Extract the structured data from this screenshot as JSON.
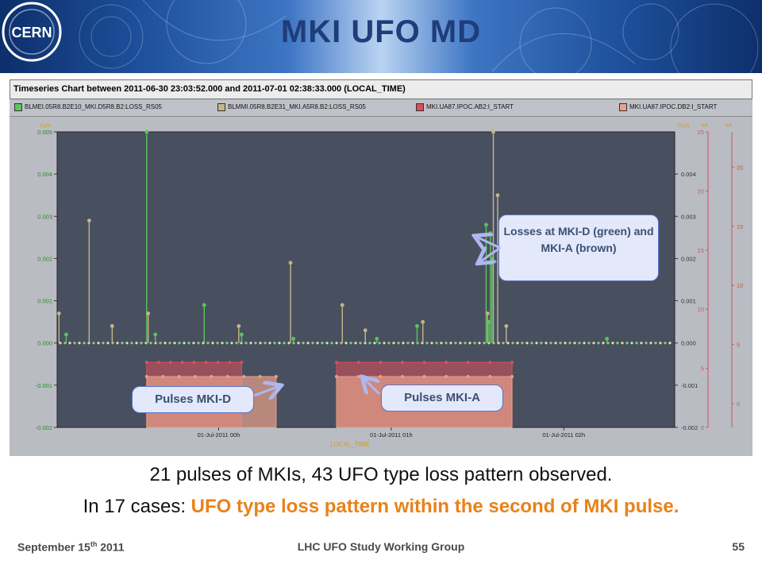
{
  "slide": {
    "title": "MKI UFO MD",
    "caption_line1": "21 pulses of MKIs, 43 UFO type loss pattern observed.",
    "caption_line2_prefix": "In 17 cases: ",
    "caption_line2_highlight": "UFO type loss pattern within the second of MKI pulse.",
    "footer_date_main": "September 15",
    "footer_date_sup": "th",
    "footer_date_year": " 2011",
    "footer_center": "LHC UFO Study Working Group",
    "page_number": "55",
    "highlight_color": "#e8821a",
    "title_color": "#1f3d7a"
  },
  "logo": {
    "text": "CERN"
  },
  "chart_header": {
    "title": "Timeseries Chart between 2011-06-30 23:03:52.000 and 2011-07-01 02:38:33.000 (LOCAL_TIME)"
  },
  "legend": [
    {
      "label": "BLMEI.05R8.B2E10_MKI.D5R8.B2:LOSS_RS05",
      "color": "#5cc55c"
    },
    {
      "label": "BLMMI.05R8.B2E31_MKI.A5R8.B2:LOSS_RS05",
      "color": "#c8b48a"
    },
    {
      "label": "MKI.UA87.IPOC.AB2:I_START",
      "color": "#d9505a"
    },
    {
      "label": "MKI.UA87.IPOC.DB2:I_START",
      "color": "#e8a08a"
    }
  ],
  "callouts": {
    "losses": "Losses at MKI-D (green) and MKI-A (brown)",
    "pulses_d": "Pulses MKI-D",
    "pulses_a": "Pulses MKI-A"
  },
  "chart_data": {
    "type": "line",
    "title": "Timeseries Chart between 2011-06-30 23:03:52.000 and 2011-07-01 02:38:33.000 (LOCAL_TIME)",
    "xlabel": "LOCAL_TIME",
    "x_tick_labels": [
      "01-Jul-2011 00h",
      "01-Jul-2011 01h",
      "01-Jul-2011 02h"
    ],
    "x_ticks": [
      "2011-07-01T00:00",
      "2011-07-01T01:00",
      "2011-07-01T02:00"
    ],
    "xlim": [
      "2011-06-30T23:03:52",
      "2011-07-01T02:38:33"
    ],
    "y_left": {
      "unit": "Gy/s",
      "lim": [
        -0.002,
        0.005
      ],
      "ticks": [
        "0.005",
        "0.004",
        "0.003",
        "0.002",
        "0.001",
        "0.000",
        "-0.001",
        "-0.002"
      ]
    },
    "y_right": {
      "unit": "Gy/s",
      "lim": [
        -0.002,
        0.005
      ],
      "ticks": [
        "0.004",
        "0.003",
        "0.002",
        "0.001",
        "0.000",
        "-0.001",
        "-0.002"
      ]
    },
    "y_right_ka1": {
      "unit": "kA",
      "lim": [
        0,
        25
      ],
      "ticks": [
        "25",
        "20",
        "15",
        "10",
        "5",
        "0"
      ]
    },
    "y_right_ka2": {
      "unit": "kA",
      "lim": [
        0,
        25
      ],
      "ticks": [
        "25",
        "20",
        "15",
        "10",
        "5",
        "0"
      ]
    },
    "grid": false,
    "legend_position": "top",
    "series": [
      {
        "name": "BLMEI.05R8.B2E10_MKI.D5R8.B2:LOSS_RS05",
        "color": "#5cc55c",
        "spikes": [
          [
            "2011-06-30T23:07:00",
            0.0002
          ],
          [
            "2011-06-30T23:35:00",
            0.005
          ],
          [
            "2011-06-30T23:38:00",
            0.0002
          ],
          [
            "2011-06-30T23:55:00",
            0.0009
          ],
          [
            "2011-07-01T00:08:00",
            0.0002
          ],
          [
            "2011-07-01T00:26:00",
            0.0001
          ],
          [
            "2011-07-01T00:55:00",
            0.0001
          ],
          [
            "2011-07-01T01:09:00",
            0.0004
          ],
          [
            "2011-07-01T01:33:00",
            0.0028
          ],
          [
            "2011-07-01T01:34:00",
            0.0005
          ],
          [
            "2011-07-01T01:34:30",
            0.0026
          ],
          [
            "2011-07-01T01:35:00",
            0.002
          ],
          [
            "2011-07-01T02:15:00",
            0.0001
          ]
        ]
      },
      {
        "name": "BLMMI.05R8.B2E31_MKI.A5R8.B2:LOSS_RS05",
        "color": "#c8b48a",
        "spikes": [
          [
            "2011-06-30T23:04:30",
            0.0007
          ],
          [
            "2011-06-30T23:15:00",
            0.0029
          ],
          [
            "2011-06-30T23:23:00",
            0.0004
          ],
          [
            "2011-06-30T23:35:30",
            0.0007
          ],
          [
            "2011-07-01T00:07:00",
            0.0004
          ],
          [
            "2011-07-01T00:25:00",
            0.0019
          ],
          [
            "2011-07-01T00:43:00",
            0.0009
          ],
          [
            "2011-07-01T00:51:00",
            0.0003
          ],
          [
            "2011-07-01T01:11:00",
            0.0005
          ],
          [
            "2011-07-01T01:33:30",
            0.0007
          ],
          [
            "2011-07-01T01:35:30",
            0.005
          ],
          [
            "2011-07-01T01:37:00",
            0.0035
          ],
          [
            "2011-07-01T01:40:00",
            0.0004
          ]
        ]
      },
      {
        "name": "MKI.UA87.IPOC.AB2:I_START",
        "color": "#d9505a",
        "pulses": [
          {
            "start": "2011-06-30T23:35:00",
            "end": "2011-07-01T00:08:00",
            "level_kA": 5.5
          },
          {
            "start": "2011-07-01T00:41:00",
            "end": "2011-07-01T01:42:00",
            "level_kA": 5.5
          }
        ]
      },
      {
        "name": "MKI.UA87.IPOC.DB2:I_START",
        "color": "#e8a08a",
        "pulses": [
          {
            "start": "2011-06-30T23:35:00",
            "end": "2011-07-01T00:20:00",
            "level_kA": 4.3
          },
          {
            "start": "2011-07-01T00:41:00",
            "end": "2011-07-01T01:42:00",
            "level_kA": 4.3
          }
        ]
      }
    ]
  }
}
